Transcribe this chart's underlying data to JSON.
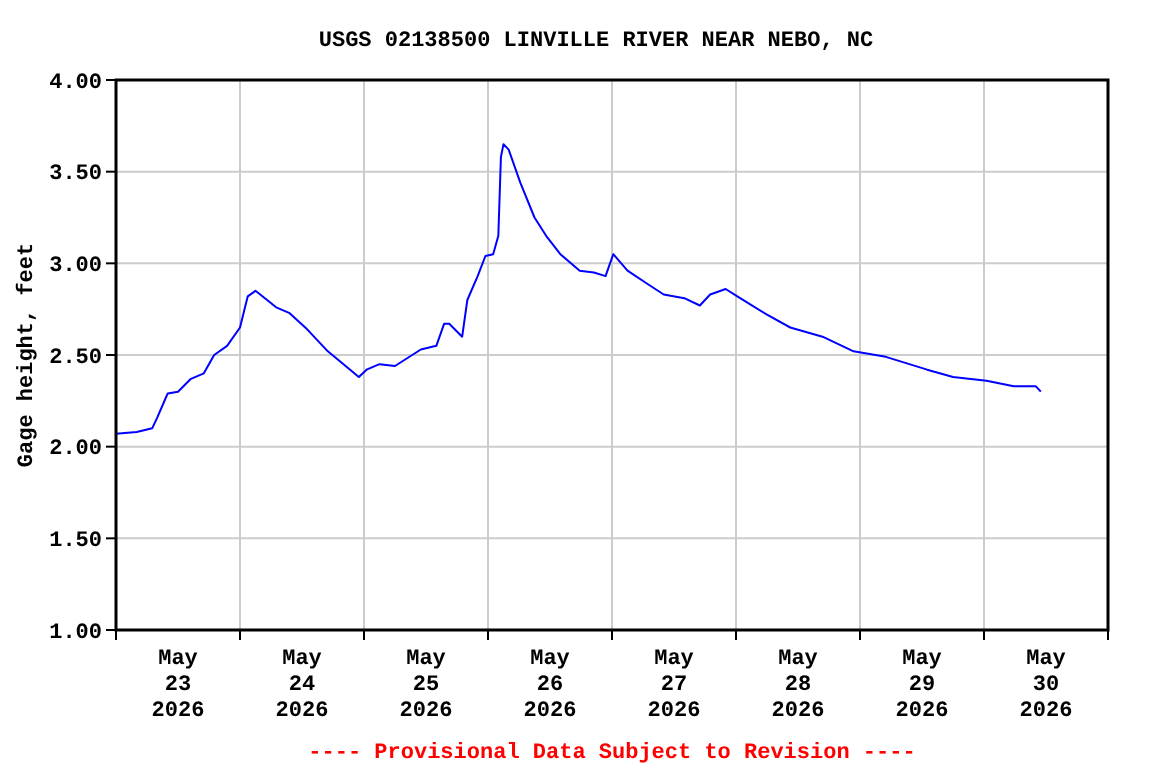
{
  "chart_data": {
    "type": "line",
    "title": "USGS 02138500 LINVILLE RIVER NEAR NEBO, NC",
    "ylabel": "Gage height, feet",
    "annotations": [
      "---- Provisional Data Subject to Revision ----"
    ],
    "x": [
      "2026-05-23T00:00",
      "2026-05-23T04:00",
      "2026-05-23T07:00",
      "2026-05-23T08:00",
      "2026-05-23T10:00",
      "2026-05-23T12:00",
      "2026-05-23T14:30",
      "2026-05-23T17:00",
      "2026-05-23T19:00",
      "2026-05-23T21:30",
      "2026-05-24T00:00",
      "2026-05-24T01:30",
      "2026-05-24T03:00",
      "2026-05-24T07:00",
      "2026-05-24T09:30",
      "2026-05-24T13:00",
      "2026-05-24T17:00",
      "2026-05-24T23:00",
      "2026-05-25T00:30",
      "2026-05-25T03:00",
      "2026-05-25T06:00",
      "2026-05-25T11:00",
      "2026-05-25T14:00",
      "2026-05-25T15:30",
      "2026-05-25T16:30",
      "2026-05-25T19:00",
      "2026-05-25T20:00",
      "2026-05-25T22:00",
      "2026-05-25T23:30",
      "2026-05-26T01:00",
      "2026-05-26T02:00",
      "2026-05-26T02:30",
      "2026-05-26T03:00",
      "2026-05-26T04:00",
      "2026-05-26T06:15",
      "2026-05-26T09:00",
      "2026-05-26T11:15",
      "2026-05-26T14:00",
      "2026-05-26T17:45",
      "2026-05-26T20:30",
      "2026-05-26T22:45",
      "2026-05-27T00:15",
      "2026-05-27T03:00",
      "2026-05-27T06:45",
      "2026-05-27T10:00",
      "2026-05-27T14:00",
      "2026-05-27T17:00",
      "2026-05-27T19:00",
      "2026-05-27T22:00",
      "2026-05-28T00:15",
      "2026-05-28T06:00",
      "2026-05-28T10:30",
      "2026-05-28T16:45",
      "2026-05-28T22:45",
      "2026-05-29T05:00",
      "2026-05-29T13:00",
      "2026-05-29T18:00",
      "2026-05-30T00:30",
      "2026-05-30T05:45",
      "2026-05-30T10:00",
      "2026-05-30T11:00"
    ],
    "series": [
      {
        "color": "#0000ff",
        "values": [
          2.07,
          2.08,
          2.1,
          2.16,
          2.29,
          2.3,
          2.37,
          2.4,
          2.5,
          2.55,
          2.65,
          2.82,
          2.85,
          2.76,
          2.73,
          2.64,
          2.52,
          2.38,
          2.42,
          2.45,
          2.44,
          2.53,
          2.55,
          2.67,
          2.67,
          2.6,
          2.8,
          2.93,
          3.04,
          3.05,
          3.15,
          3.58,
          3.65,
          3.62,
          3.44,
          3.25,
          3.15,
          3.05,
          2.96,
          2.95,
          2.93,
          3.05,
          2.96,
          2.89,
          2.83,
          2.81,
          2.77,
          2.83,
          2.86,
          2.82,
          2.72,
          2.65,
          2.6,
          2.52,
          2.49,
          2.42,
          2.38,
          2.36,
          2.33,
          2.33,
          2.3
        ]
      }
    ],
    "xlim": [
      "2026-05-23",
      "2026-05-31"
    ],
    "xticks": [
      {
        "value": "2026-05-23",
        "label": null
      },
      {
        "value": "2026-05-23T12:00",
        "label": "May\n23\n2026"
      },
      {
        "value": "2026-05-24",
        "label": null
      },
      {
        "value": "2026-05-24T12:00",
        "label": "May\n24\n2026"
      },
      {
        "value": "2026-05-25",
        "label": null
      },
      {
        "value": "2026-05-25T12:00",
        "label": "May\n25\n2026"
      },
      {
        "value": "2026-05-26",
        "label": null
      },
      {
        "value": "2026-05-26T12:00",
        "label": "May\n26\n2026"
      },
      {
        "value": "2026-05-27",
        "label": null
      },
      {
        "value": "2026-05-27T12:00",
        "label": "May\n27\n2026"
      },
      {
        "value": "2026-05-28",
        "label": null
      },
      {
        "value": "2026-05-28T12:00",
        "label": "May\n28\n2026"
      },
      {
        "value": "2026-05-29",
        "label": null
      },
      {
        "value": "2026-05-29T12:00",
        "label": "May\n29\n2026"
      },
      {
        "value": "2026-05-30",
        "label": null
      },
      {
        "value": "2026-05-30T12:00",
        "label": "May\n30\n2026"
      },
      {
        "value": "2026-05-31",
        "label": null
      }
    ],
    "ylim": [
      1,
      4
    ],
    "yticks": [
      {
        "value": 1,
        "label": "1.00"
      },
      {
        "value": 1.5,
        "label": "1.50"
      },
      {
        "value": 2,
        "label": "2.00"
      },
      {
        "value": 2.5,
        "label": "2.50"
      },
      {
        "value": 3,
        "label": "3.00"
      },
      {
        "value": 3.5,
        "label": "3.50"
      },
      {
        "value": 4,
        "label": "4.00"
      }
    ],
    "grid": true,
    "marker": "none",
    "line_style": "solid"
  }
}
